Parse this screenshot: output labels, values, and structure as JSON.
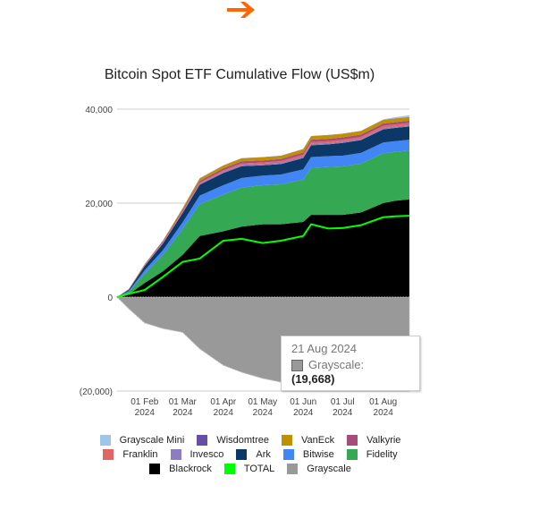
{
  "header": {
    "arrow_icon": "arrow-right-icon",
    "arrow_color": "#ff6600"
  },
  "chart_data": {
    "type": "area",
    "stacked": true,
    "title": "Bitcoin Spot ETF Cumulative Flow (US$m)",
    "xlabel": "",
    "ylabel": "",
    "ylim": [
      -20000,
      40000
    ],
    "yticks": [
      {
        "value": 40000,
        "label": "40,000"
      },
      {
        "value": 20000,
        "label": "20,000"
      },
      {
        "value": 0,
        "label": "0"
      },
      {
        "value": -20000,
        "label": "(20,000)"
      }
    ],
    "xticks": [
      {
        "date": "2024-02-01",
        "line1": "01 Feb",
        "line2": "2024"
      },
      {
        "date": "2024-03-01",
        "line1": "01 Mar",
        "line2": "2024"
      },
      {
        "date": "2024-04-01",
        "line1": "01 Apr",
        "line2": "2024"
      },
      {
        "date": "2024-05-01",
        "line1": "01 May",
        "line2": "2024"
      },
      {
        "date": "2024-06-01",
        "line1": "01 Jun",
        "line2": "2024"
      },
      {
        "date": "2024-07-01",
        "line1": "01 Jul",
        "line2": "2024"
      },
      {
        "date": "2024-08-01",
        "line1": "01 Aug",
        "line2": "2024"
      }
    ],
    "xrange": [
      "2024-01-11",
      "2024-08-21"
    ],
    "grid": true,
    "legend_position": "bottom",
    "x": [
      "2024-01-11",
      "2024-01-20",
      "2024-02-01",
      "2024-02-15",
      "2024-03-01",
      "2024-03-14",
      "2024-04-01",
      "2024-04-15",
      "2024-05-01",
      "2024-05-15",
      "2024-06-01",
      "2024-06-07",
      "2024-06-20",
      "2024-07-01",
      "2024-07-15",
      "2024-08-01",
      "2024-08-10",
      "2024-08-21"
    ],
    "series": [
      {
        "name": "Blackrock",
        "color": "#000000",
        "values": [
          0,
          600,
          3000,
          5500,
          9000,
          13000,
          14000,
          15000,
          15500,
          15500,
          16000,
          17500,
          17500,
          17500,
          18000,
          20000,
          20500,
          20800
        ]
      },
      {
        "name": "Fidelity",
        "color": "#34a853",
        "values": [
          0,
          500,
          2000,
          3500,
          5500,
          6800,
          7800,
          8300,
          8300,
          8500,
          9000,
          10000,
          10200,
          10300,
          10400,
          10600,
          10400,
          10400
        ]
      },
      {
        "name": "Bitwise",
        "color": "#4285f4",
        "values": [
          0,
          200,
          700,
          1000,
          1400,
          1800,
          2000,
          2050,
          2050,
          2100,
          2200,
          2300,
          2300,
          2300,
          2300,
          2300,
          2300,
          2300
        ]
      },
      {
        "name": "Ark",
        "color": "#0b3866",
        "values": [
          0,
          300,
          900,
          1400,
          2000,
          2300,
          2600,
          2500,
          2200,
          2200,
          2400,
          2500,
          2500,
          2700,
          2700,
          2800,
          2800,
          2800
        ]
      },
      {
        "name": "Invesco",
        "color": "#8e7cc3",
        "values": [
          0,
          50,
          100,
          150,
          200,
          250,
          300,
          300,
          300,
          300,
          300,
          300,
          300,
          300,
          300,
          300,
          300,
          300
        ]
      },
      {
        "name": "Franklin",
        "color": "#e06666",
        "values": [
          0,
          30,
          80,
          100,
          150,
          200,
          250,
          300,
          300,
          350,
          400,
          400,
          400,
          400,
          400,
          450,
          450,
          450
        ]
      },
      {
        "name": "Valkyrie",
        "color": "#a64d79",
        "values": [
          0,
          50,
          150,
          250,
          350,
          400,
          450,
          450,
          450,
          450,
          500,
          500,
          500,
          500,
          500,
          500,
          500,
          500
        ]
      },
      {
        "name": "VanEck",
        "color": "#bf9000",
        "values": [
          0,
          30,
          80,
          150,
          300,
          500,
          600,
          650,
          650,
          650,
          700,
          750,
          750,
          750,
          750,
          750,
          750,
          750
        ]
      },
      {
        "name": "Wisdomtree",
        "color": "#674ea7",
        "values": [
          0,
          2,
          5,
          10,
          20,
          25,
          30,
          30,
          30,
          35,
          35,
          40,
          40,
          40,
          40,
          40,
          40,
          40
        ]
      },
      {
        "name": "Grayscale Mini",
        "color": "#9fc5e8",
        "values": [
          0,
          0,
          0,
          0,
          0,
          0,
          0,
          0,
          0,
          0,
          0,
          0,
          0,
          0,
          0,
          100,
          250,
          350
        ]
      },
      {
        "name": "Grayscale",
        "color": "#999999",
        "values": [
          0,
          -2500,
          -5500,
          -6700,
          -7500,
          -11000,
          -14500,
          -16000,
          -17300,
          -18100,
          -18500,
          -18600,
          -18800,
          -19000,
          -19200,
          -19400,
          -19550,
          -19668
        ]
      }
    ],
    "line_series": {
      "name": "TOTAL",
      "color": "#00ff00",
      "values": [
        0,
        700,
        1500,
        4300,
        7500,
        8200,
        12000,
        12400,
        11500,
        12000,
        13000,
        15500,
        14600,
        14700,
        15300,
        17000,
        17200,
        17300
      ]
    },
    "tooltip": {
      "date": "21 Aug 2024",
      "series": "Grayscale:",
      "value": "(19,668)"
    }
  },
  "legend": {
    "rows": [
      [
        {
          "label": "Grayscale Mini",
          "color": "#9fc5e8"
        },
        {
          "label": "Wisdomtree",
          "color": "#674ea7"
        },
        {
          "label": "VanEck",
          "color": "#bf9000"
        },
        {
          "label": "Valkyrie",
          "color": "#a64d79"
        }
      ],
      [
        {
          "label": "Franklin",
          "color": "#e06666"
        },
        {
          "label": "Invesco",
          "color": "#8e7cc3"
        },
        {
          "label": "Ark",
          "color": "#0b3866"
        },
        {
          "label": "Bitwise",
          "color": "#4285f4"
        },
        {
          "label": "Fidelity",
          "color": "#34a853"
        }
      ],
      [
        {
          "label": "Blackrock",
          "color": "#000000"
        },
        {
          "label": "TOTAL",
          "color": "#00ff00"
        },
        {
          "label": "Grayscale",
          "color": "#999999"
        }
      ]
    ]
  }
}
